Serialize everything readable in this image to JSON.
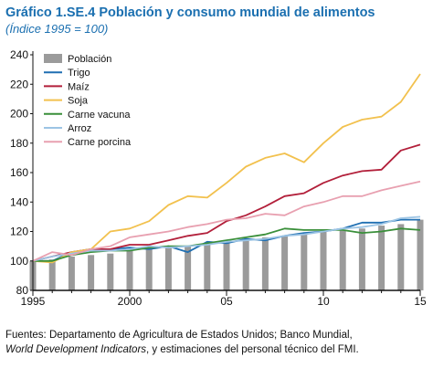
{
  "header": {
    "title": "Gráfico 1.SE.4 Población y consumo mundial de alimentos",
    "subtitle": "(Índice 1995 = 100)"
  },
  "source": {
    "line1": "Fuentes: Departamento de Agricultura de Estados Unidos; Banco Mundial,",
    "line2_italic": "World Development Indicators",
    "line2_rest": ", y estimaciones del personal técnico del FMI."
  },
  "chart_data": {
    "type": "bar+line",
    "x": [
      1995,
      1996,
      1997,
      1998,
      1999,
      2000,
      2001,
      2002,
      2003,
      2004,
      2005,
      2006,
      2007,
      2008,
      2009,
      2010,
      2011,
      2012,
      2013,
      2014,
      2015
    ],
    "xticks": [
      1995,
      2000,
      2005,
      2010,
      2015
    ],
    "xtick_labels": [
      "1995",
      "2000",
      "05",
      "10",
      "15"
    ],
    "ylim": [
      80,
      240
    ],
    "yticks": [
      80,
      100,
      120,
      140,
      160,
      180,
      200,
      220,
      240
    ],
    "legend_position": "top-left",
    "bars": {
      "name": "Población",
      "color": "#9b9b9b",
      "values": [
        100,
        101,
        103,
        104,
        105,
        107,
        108,
        109,
        110,
        112,
        113,
        114,
        116,
        117,
        118,
        120,
        121,
        122,
        124,
        125,
        128
      ]
    },
    "series": [
      {
        "name": "Trigo",
        "color": "#1f6fb2",
        "values": [
          100,
          100,
          106,
          108,
          108,
          109,
          108,
          110,
          106,
          113,
          112,
          115,
          114,
          117,
          119,
          120,
          122,
          126,
          126,
          128,
          128
        ]
      },
      {
        "name": "Maíz",
        "color": "#b21f3a",
        "values": [
          100,
          103,
          106,
          108,
          108,
          111,
          111,
          114,
          117,
          119,
          127,
          131,
          137,
          144,
          146,
          153,
          158,
          161,
          162,
          175,
          179
        ]
      },
      {
        "name": "Soja",
        "color": "#f2c14e",
        "values": [
          100,
          99,
          106,
          108,
          120,
          122,
          127,
          138,
          144,
          143,
          153,
          164,
          170,
          173,
          167,
          180,
          191,
          196,
          198,
          208,
          227
        ]
      },
      {
        "name": "Carne vacuna",
        "color": "#3a8f3a",
        "values": [
          100,
          100,
          104,
          106,
          107,
          107,
          109,
          110,
          110,
          112,
          114,
          116,
          118,
          122,
          121,
          121,
          121,
          119,
          120,
          122,
          121
        ]
      },
      {
        "name": "Arroz",
        "color": "#9cc4e4",
        "values": [
          100,
          103,
          105,
          107,
          107,
          108,
          110,
          109,
          110,
          111,
          113,
          114,
          115,
          117,
          118,
          120,
          122,
          123,
          125,
          129,
          130
        ]
      },
      {
        "name": "Carne porcina",
        "color": "#e8a0b0",
        "values": [
          100,
          106,
          104,
          108,
          110,
          116,
          118,
          120,
          123,
          125,
          128,
          129,
          132,
          131,
          137,
          140,
          144,
          144,
          148,
          151,
          154
        ]
      }
    ]
  }
}
